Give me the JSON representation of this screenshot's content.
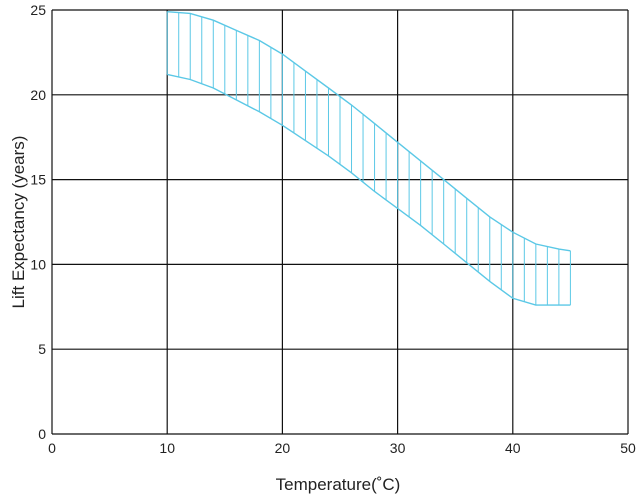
{
  "chart_data": {
    "type": "area",
    "title": "",
    "xlabel": "Temperature(˚C)",
    "ylabel": "Lift  Expectancy   (years)",
    "xlim": [
      0,
      50
    ],
    "ylim": [
      0,
      25
    ],
    "x_ticks": [
      "0",
      "10",
      "20",
      "30",
      "40",
      "50"
    ],
    "y_ticks": [
      "0",
      "5",
      "10",
      "15",
      "20",
      "25"
    ],
    "grid": true,
    "legend": "none",
    "band_color": "#5bc8e6",
    "series": [
      {
        "role": "upper",
        "x": [
          10,
          12,
          14,
          16,
          18,
          20,
          22,
          24,
          26,
          28,
          30,
          32,
          34,
          36,
          38,
          40,
          42,
          44,
          45
        ],
        "y": [
          24.9,
          24.8,
          24.4,
          23.8,
          23.2,
          22.4,
          21.4,
          20.4,
          19.4,
          18.3,
          17.2,
          16.1,
          15.0,
          13.9,
          12.8,
          11.9,
          11.2,
          10.9,
          10.8
        ]
      },
      {
        "role": "lower",
        "x": [
          10,
          12,
          14,
          16,
          18,
          20,
          22,
          24,
          26,
          28,
          30,
          32,
          34,
          36,
          38,
          40,
          42,
          44,
          45
        ],
        "y": [
          21.2,
          20.9,
          20.4,
          19.7,
          19.0,
          18.2,
          17.3,
          16.4,
          15.4,
          14.3,
          13.3,
          12.3,
          11.2,
          10.1,
          9.0,
          8.0,
          7.6,
          7.6,
          7.6
        ]
      }
    ]
  }
}
